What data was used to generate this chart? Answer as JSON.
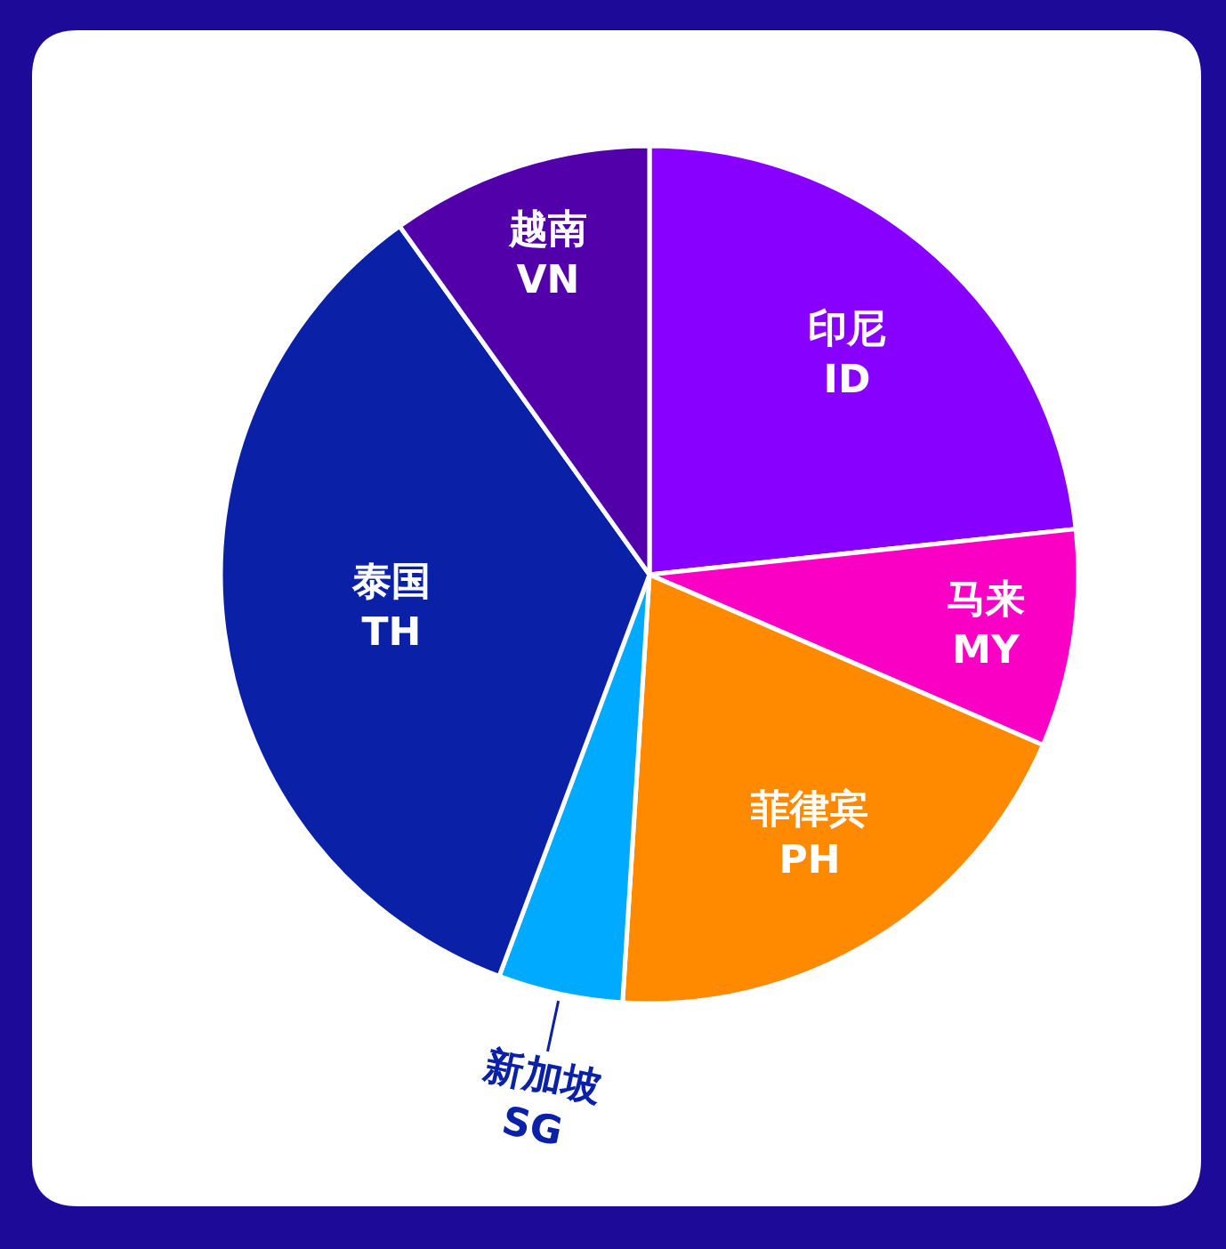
{
  "chart_data": {
    "type": "pie",
    "categories": [
      "印尼\nID",
      "马来\nMY",
      "菲律宾\nPH",
      "新加坡\nSG",
      "泰国\nTH",
      "越南\nVN"
    ],
    "values": [
      23.3,
      8.2,
      19.5,
      4.7,
      34.4,
      9.9
    ],
    "colors": [
      "#8800ff",
      "#fa00c4",
      "#ff8a00",
      "#00aaff",
      "#0a20a6",
      "#5200aa"
    ]
  }
}
